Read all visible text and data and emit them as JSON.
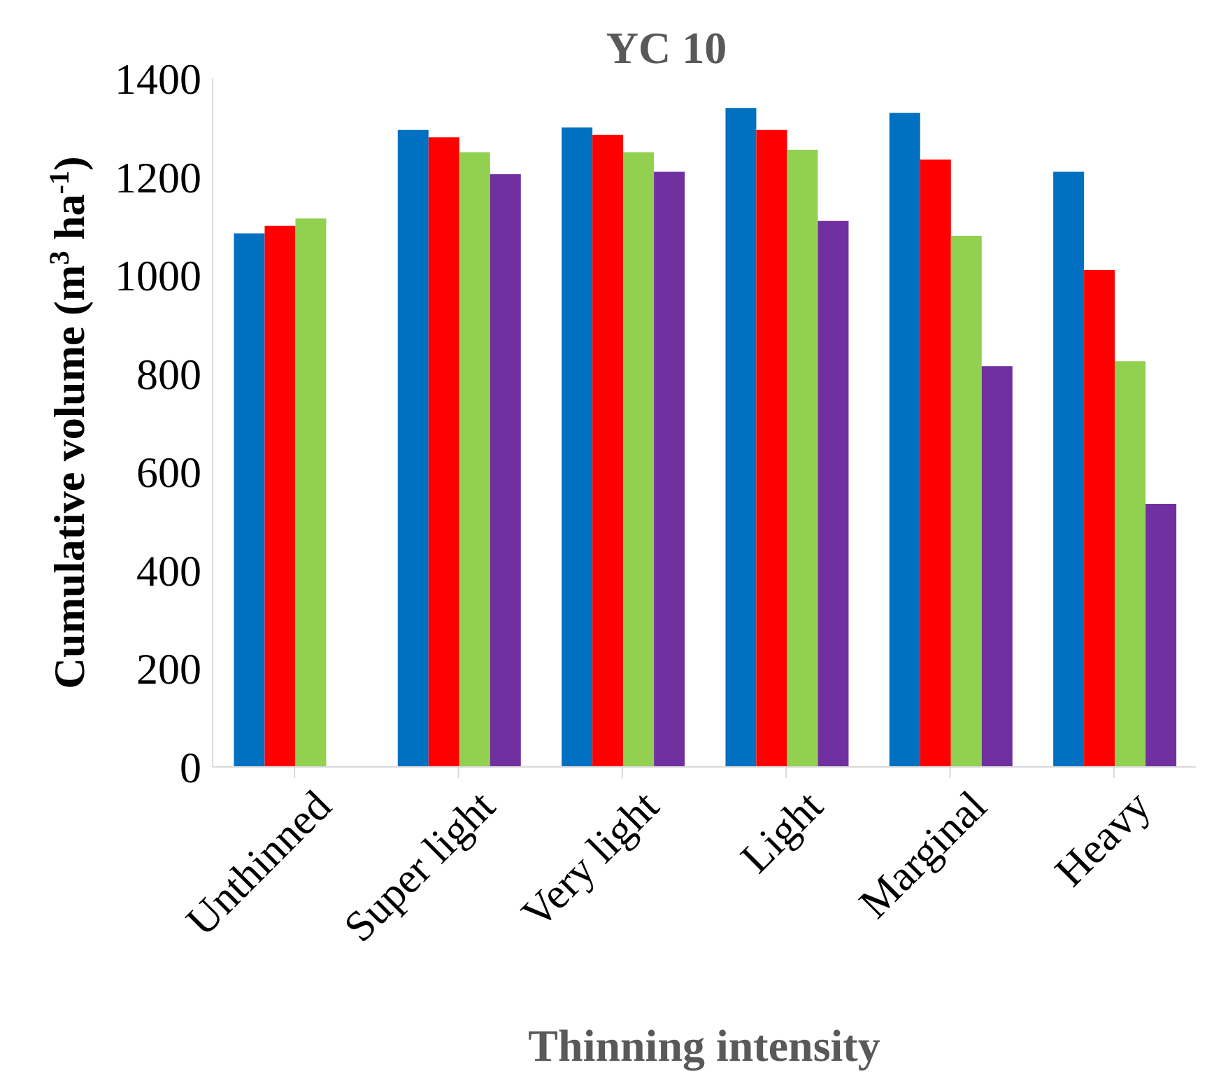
{
  "chart_data": {
    "type": "bar",
    "title": "YC 10",
    "xlabel": "Thinning intensity",
    "ylabel": "Cumulative volume (m$^{3}$ ha$^{-1}$)",
    "categories": [
      "Unthinned",
      "Super light",
      "Very light",
      "Light",
      "Marginal",
      "Heavy"
    ],
    "series": [
      {
        "color": "#0070c0",
        "values": [
          1085,
          1295,
          1300,
          1340,
          1330,
          1210
        ]
      },
      {
        "color": "#ff0000",
        "values": [
          1100,
          1280,
          1285,
          1295,
          1235,
          1010
        ]
      },
      {
        "color": "#92d050",
        "values": [
          1115,
          1250,
          1250,
          1255,
          1080,
          825
        ]
      },
      {
        "color": "#7030a0",
        "values": [
          null,
          1205,
          1210,
          1110,
          815,
          535
        ]
      }
    ],
    "ylim": [
      0,
      1400
    ],
    "yticks": [
      0,
      200,
      400,
      600,
      800,
      1000,
      1200,
      1400
    ],
    "grid": false,
    "legend": false
  }
}
